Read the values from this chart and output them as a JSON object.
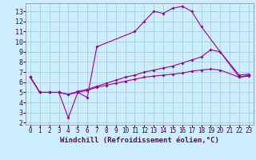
{
  "xlabel": "Windchill (Refroidissement éolien,°C)",
  "bg_color": "#cceeff",
  "grid_color": "#99cccc",
  "line_color": "#990099",
  "xlim": [
    -0.5,
    23.5
  ],
  "ylim": [
    1.8,
    13.8
  ],
  "xticks": [
    0,
    1,
    2,
    3,
    4,
    5,
    6,
    7,
    8,
    9,
    10,
    11,
    12,
    13,
    14,
    15,
    16,
    17,
    18,
    19,
    20,
    21,
    22,
    23
  ],
  "yticks": [
    2,
    3,
    4,
    5,
    6,
    7,
    8,
    9,
    10,
    11,
    12,
    13
  ],
  "line1_x": [
    0,
    1,
    2,
    3,
    4,
    5,
    6,
    7,
    11,
    12,
    13,
    14,
    15,
    16,
    17,
    18,
    22,
    23
  ],
  "line1_y": [
    6.5,
    5.0,
    5.0,
    5.0,
    2.5,
    5.0,
    4.5,
    9.5,
    11.0,
    12.0,
    13.0,
    12.8,
    13.3,
    13.5,
    13.0,
    11.5,
    6.5,
    6.7
  ],
  "line2_x": [
    0,
    1,
    2,
    3,
    4,
    5,
    6,
    7,
    8,
    9,
    10,
    11,
    12,
    13,
    14,
    15,
    16,
    17,
    18,
    19,
    20,
    22,
    23
  ],
  "line2_y": [
    6.5,
    5.0,
    5.0,
    5.0,
    4.8,
    5.1,
    5.3,
    5.6,
    5.9,
    6.2,
    6.5,
    6.7,
    7.0,
    7.2,
    7.4,
    7.6,
    7.9,
    8.2,
    8.5,
    9.2,
    9.0,
    6.7,
    6.8
  ],
  "line3_x": [
    0,
    1,
    2,
    3,
    4,
    5,
    6,
    7,
    8,
    9,
    10,
    11,
    12,
    13,
    14,
    15,
    16,
    17,
    18,
    19,
    20,
    22,
    23
  ],
  "line3_y": [
    6.5,
    5.0,
    5.0,
    5.0,
    4.8,
    5.0,
    5.2,
    5.5,
    5.7,
    5.9,
    6.1,
    6.3,
    6.5,
    6.6,
    6.7,
    6.8,
    6.9,
    7.1,
    7.2,
    7.3,
    7.2,
    6.5,
    6.6
  ],
  "marker_size": 2.0,
  "line_width": 0.8,
  "font_size_label": 6.5,
  "font_size_tick": 5.5
}
